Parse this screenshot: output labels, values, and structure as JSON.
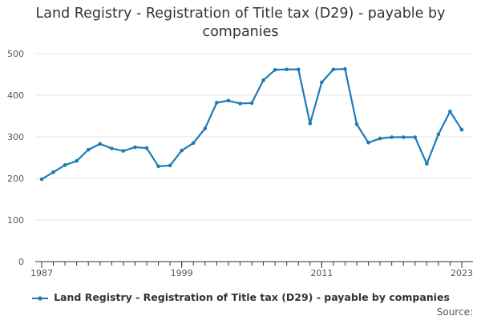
{
  "title": "Land Registry - Registration of Title tax (D29) - payable by companies",
  "source_label": "Source:",
  "colors": {
    "series": "#1c7ab6",
    "grid": "#e6e6e6",
    "axis": "#333333"
  },
  "chart_data": {
    "type": "line",
    "title": "Land Registry - Registration of Title tax (D29) - payable by companies",
    "xlabel": "",
    "ylabel": "",
    "xlim": [
      1987,
      2023
    ],
    "ylim": [
      0,
      500
    ],
    "xticks": [
      "1987",
      "1999",
      "2011",
      "2023"
    ],
    "yticks": [
      "0",
      "100",
      "200",
      "300",
      "400",
      "500"
    ],
    "grid": true,
    "legend_position": "bottom",
    "series": [
      {
        "name": "Land Registry - Registration of Title tax (D29) - payable by companies",
        "x": [
          1987,
          1988,
          1989,
          1990,
          1991,
          1992,
          1993,
          1994,
          1995,
          1996,
          1997,
          1998,
          1999,
          2000,
          2001,
          2002,
          2003,
          2004,
          2005,
          2006,
          2007,
          2008,
          2009,
          2010,
          2011,
          2012,
          2013,
          2014,
          2015,
          2016,
          2017,
          2018,
          2019,
          2020,
          2021,
          2022,
          2023
        ],
        "values": [
          198,
          215,
          232,
          242,
          269,
          283,
          272,
          266,
          275,
          273,
          229,
          231,
          267,
          285,
          320,
          382,
          387,
          380,
          381,
          436,
          461,
          462,
          462,
          332,
          431,
          462,
          463,
          330,
          286,
          296,
          299,
          299,
          299,
          235,
          306,
          361,
          317
        ]
      }
    ]
  }
}
